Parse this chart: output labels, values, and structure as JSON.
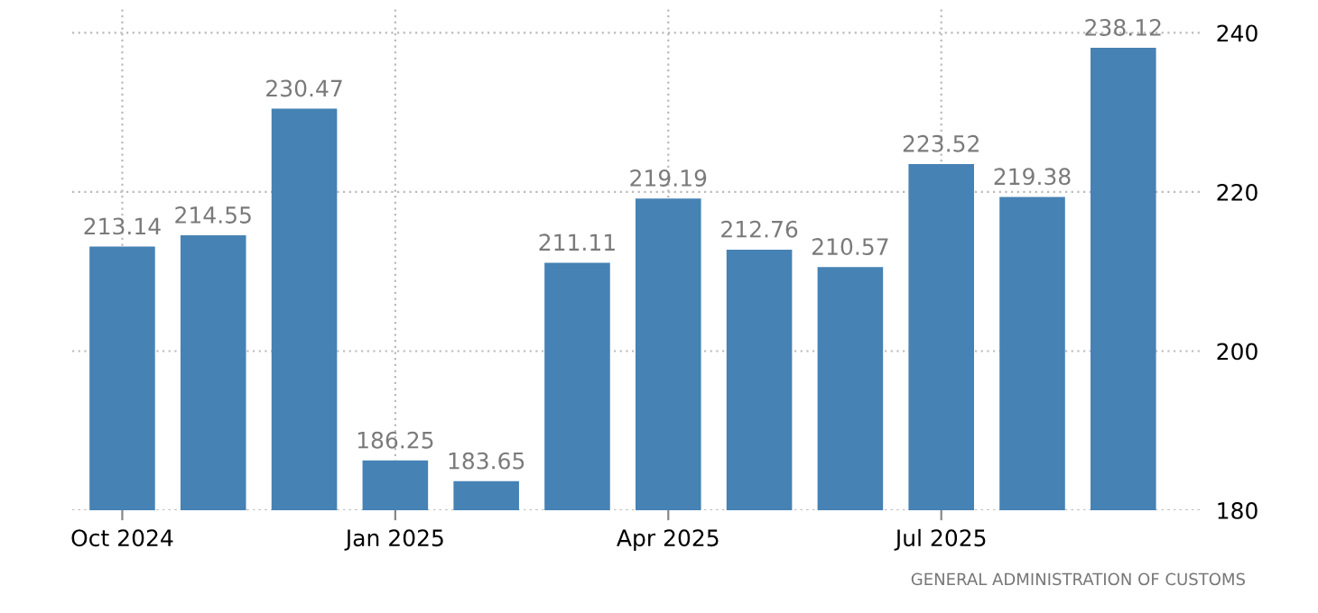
{
  "chart_data": {
    "type": "bar",
    "categories": [
      "Oct 2024",
      null,
      null,
      "Jan 2025",
      null,
      null,
      "Apr 2025",
      null,
      null,
      "Jul 2025",
      null,
      null
    ],
    "values": [
      213.14,
      214.55,
      230.47,
      186.25,
      183.65,
      211.11,
      219.19,
      212.76,
      210.57,
      223.52,
      219.38,
      238.12
    ],
    "color": "#4682b4",
    "ylim": [
      180,
      243
    ],
    "yticks": [
      180,
      200,
      220,
      240
    ],
    "grid": true,
    "data_labels": true,
    "annotations": [
      "GENERAL ADMINISTRATION OF CUSTOMS"
    ]
  }
}
